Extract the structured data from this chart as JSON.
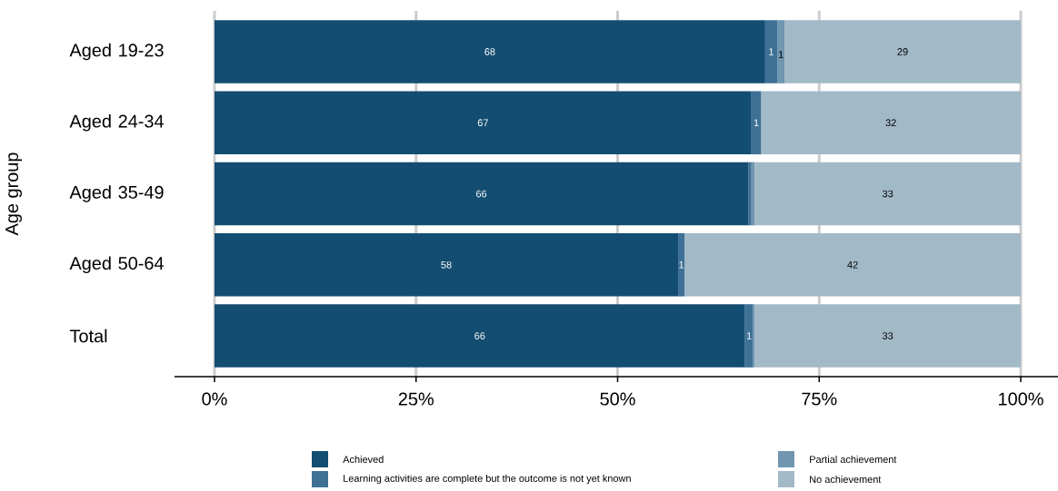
{
  "chart_data": {
    "type": "bar",
    "orientation": "horizontal",
    "stacked": true,
    "ylabel": "Age group",
    "categories": [
      "Aged 19-23",
      "Aged 24-34",
      "Aged 35-49",
      "Aged 50-64",
      "Total"
    ],
    "series": [
      {
        "name": "Achieved",
        "color": "#134d72",
        "values": [
          68.3,
          66.6,
          66.2,
          57.5,
          65.8
        ],
        "value_labels": [
          "68",
          "67",
          "66",
          "58",
          "66"
        ]
      },
      {
        "name": "Learning activities are complete but the outcome is not yet known",
        "color": "#3f7196",
        "values": [
          1.5,
          1.2,
          0.4,
          0.8,
          1.0
        ],
        "value_labels": [
          "1",
          "1",
          null,
          "1",
          "1"
        ]
      },
      {
        "name": "Partial achievement",
        "color": "#7096b0",
        "values": [
          0.9,
          0,
          0.4,
          0,
          0.2
        ],
        "value_labels": [
          "1",
          null,
          null,
          null,
          null
        ]
      },
      {
        "name": "No achievement",
        "color": "#a2b9c8",
        "values": [
          29.3,
          32.2,
          33.0,
          41.7,
          33.0
        ],
        "value_labels": [
          "29",
          "32",
          "33",
          "42",
          "33"
        ]
      }
    ],
    "xlim": [
      0,
      100
    ],
    "xticks": [
      {
        "value": 0,
        "label": "0%"
      },
      {
        "value": 25,
        "label": "25%"
      },
      {
        "value": 50,
        "label": "50%"
      },
      {
        "value": 75,
        "label": "75%"
      },
      {
        "value": 100,
        "label": "100%"
      }
    ],
    "grid": "x",
    "legend": "bottom"
  }
}
